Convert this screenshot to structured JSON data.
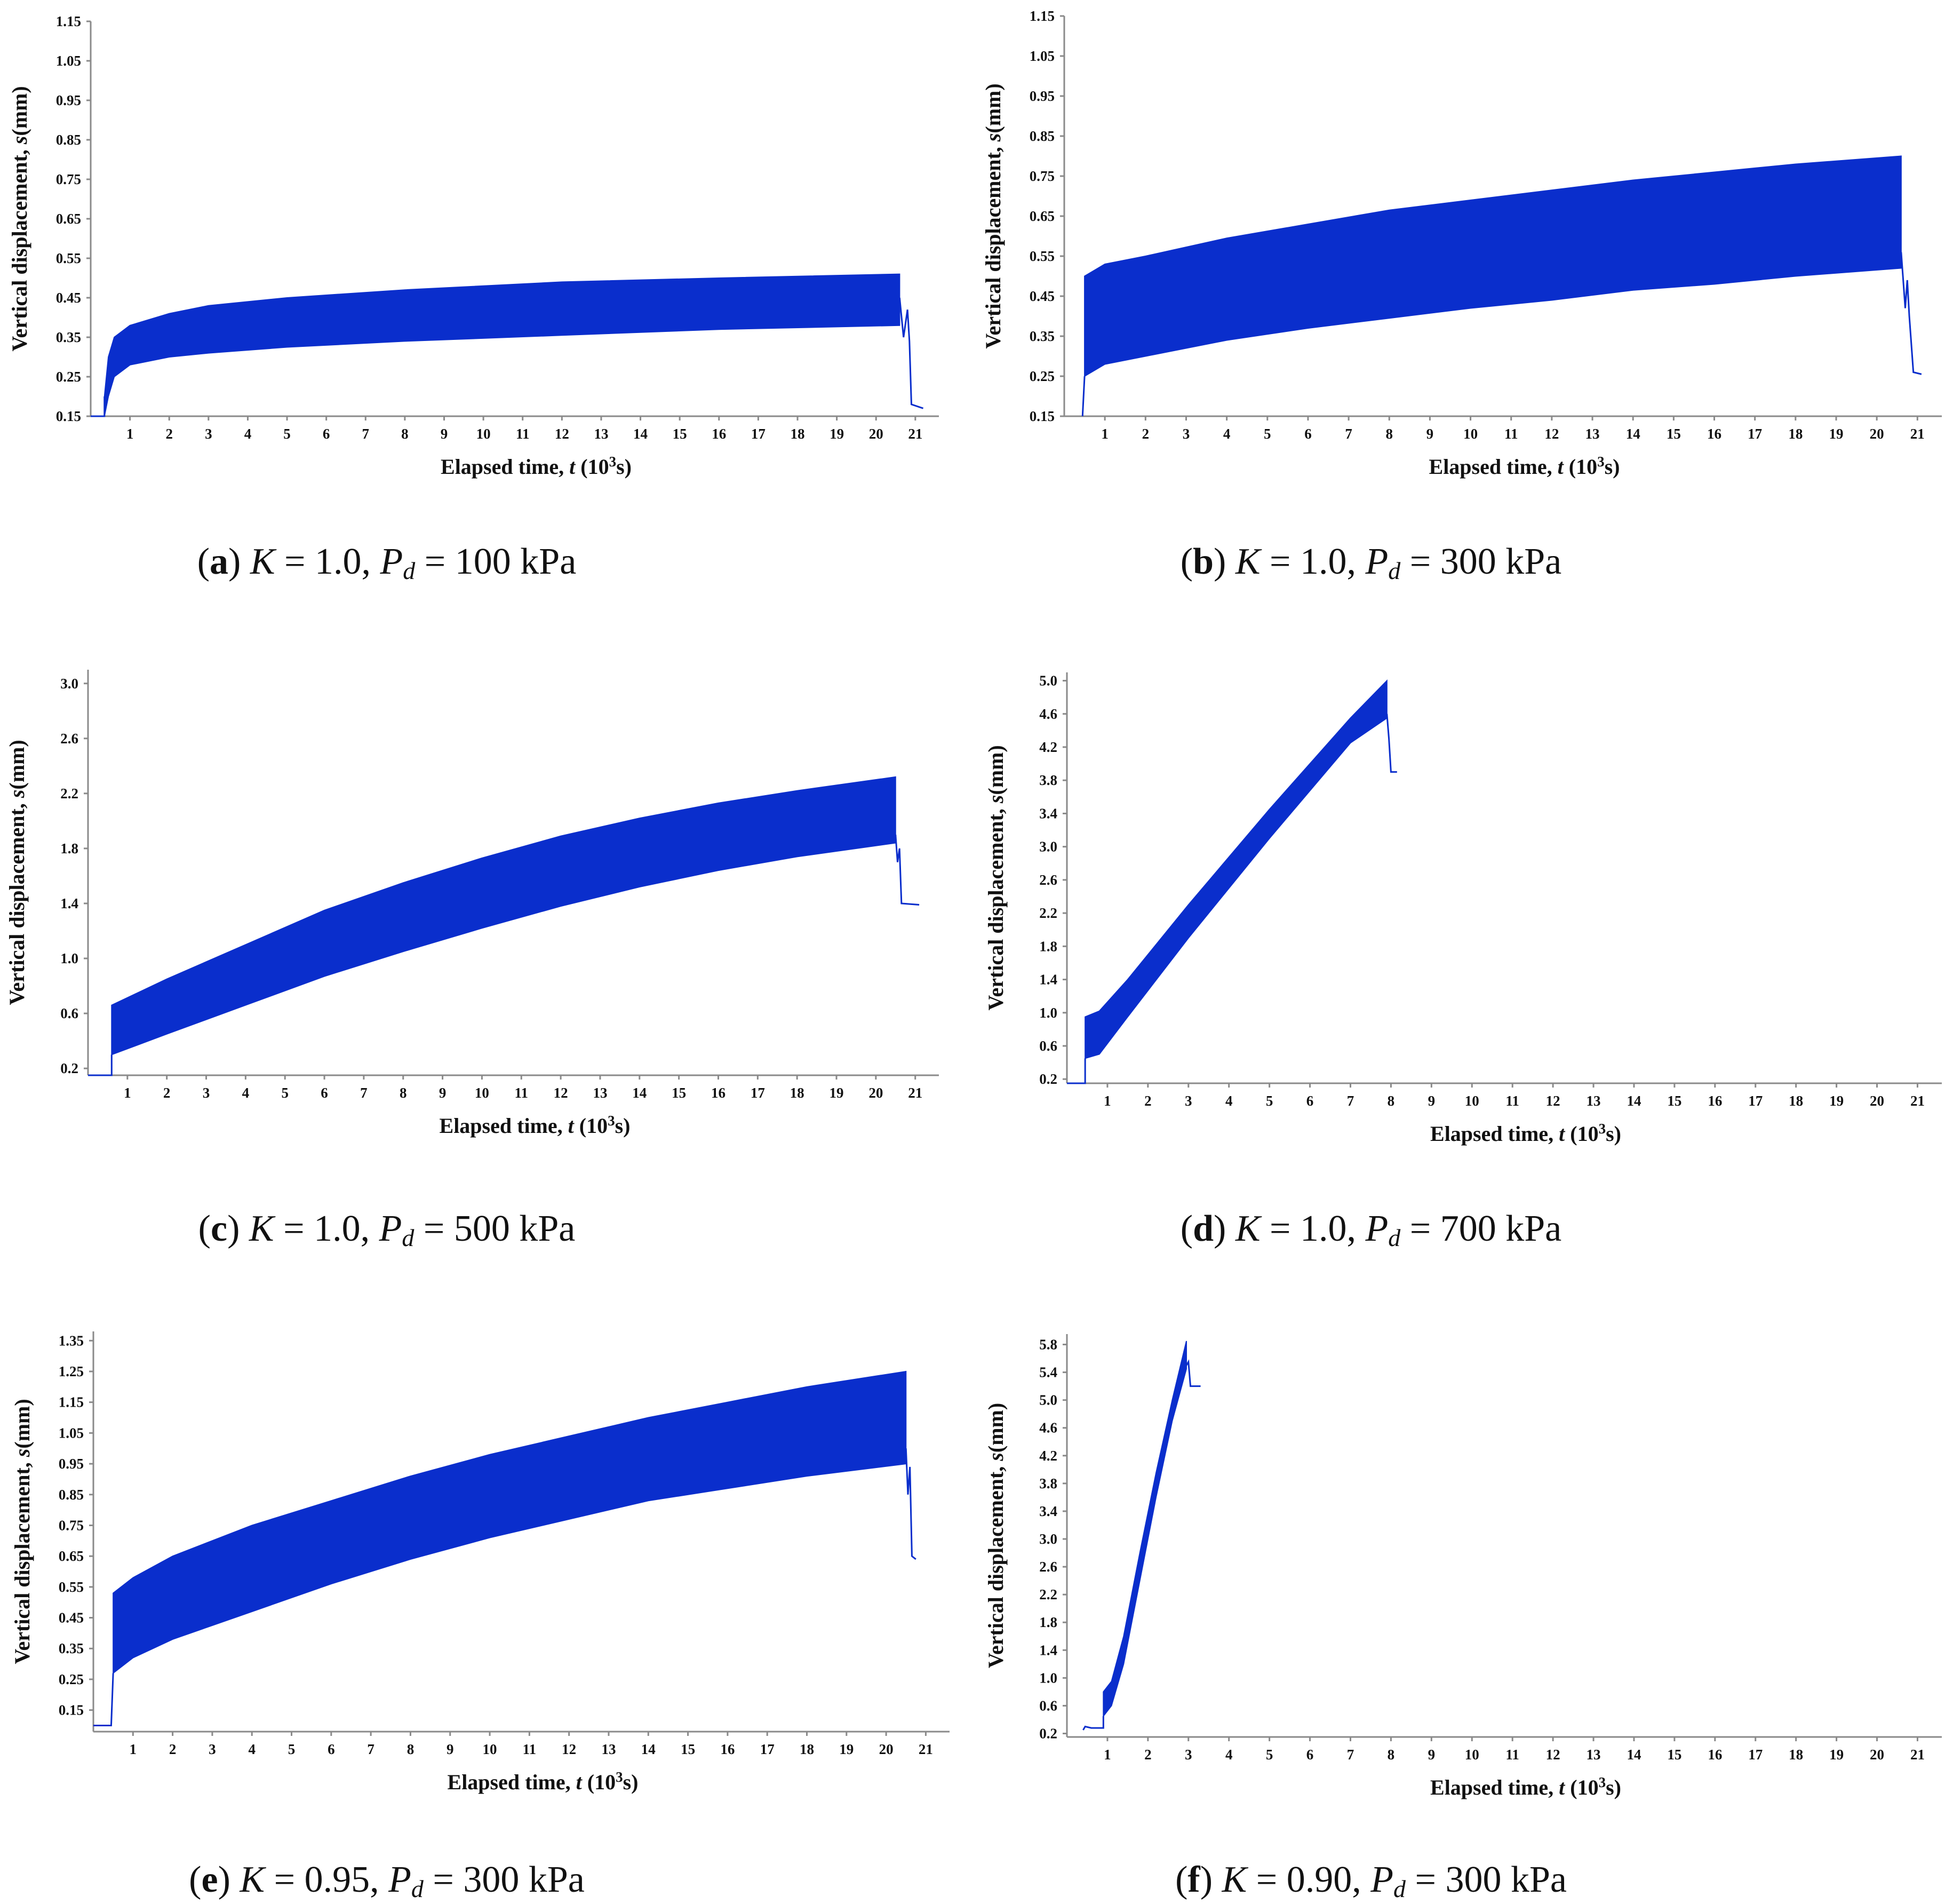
{
  "chart_data": [
    {
      "type": "area",
      "panel": "a",
      "caption_letter": "a",
      "caption_K": "1.0",
      "caption_Pd": "100",
      "xlabel_pre": "Elapsed time, ",
      "xlabel_var": "t",
      "xlabel_post": " (10",
      "xlabel_exp": "3",
      "xlabel_end": "s)",
      "ylabel_pre": "Vertical displacement, ",
      "ylabel_var": "s",
      "ylabel_post": "(mm)",
      "xlim": [
        0,
        21.6
      ],
      "ylim": [
        0.15,
        1.15
      ],
      "xticks": [
        1,
        2,
        3,
        4,
        5,
        6,
        7,
        8,
        9,
        10,
        11,
        12,
        13,
        14,
        15,
        16,
        17,
        18,
        19,
        20,
        21
      ],
      "yticks": [
        "0.15",
        "0.25",
        "0.35",
        "0.45",
        "0.55",
        "0.65",
        "0.75",
        "0.85",
        "0.95",
        "1.05",
        "1.15"
      ],
      "color": "#0a2ecc",
      "band_upper": [
        [
          0.35,
          0.2
        ],
        [
          0.45,
          0.3
        ],
        [
          0.6,
          0.35
        ],
        [
          1,
          0.38
        ],
        [
          2,
          0.41
        ],
        [
          3,
          0.43
        ],
        [
          5,
          0.45
        ],
        [
          8,
          0.47
        ],
        [
          12,
          0.49
        ],
        [
          16,
          0.5
        ],
        [
          20.6,
          0.51
        ]
      ],
      "band_lower": [
        [
          0.35,
          0.15
        ],
        [
          0.45,
          0.2
        ],
        [
          0.6,
          0.25
        ],
        [
          1,
          0.28
        ],
        [
          2,
          0.3
        ],
        [
          3,
          0.31
        ],
        [
          5,
          0.325
        ],
        [
          8,
          0.34
        ],
        [
          12,
          0.355
        ],
        [
          16,
          0.37
        ],
        [
          20.6,
          0.38
        ]
      ],
      "trace_pre": [
        [
          0,
          0.15
        ],
        [
          0.35,
          0.15
        ],
        [
          0.35,
          0.2
        ]
      ],
      "trace_post": [
        [
          20.6,
          0.45
        ],
        [
          20.7,
          0.35
        ],
        [
          20.8,
          0.42
        ],
        [
          20.85,
          0.34
        ],
        [
          20.9,
          0.18
        ],
        [
          21.2,
          0.17
        ]
      ]
    },
    {
      "type": "area",
      "panel": "b",
      "caption_letter": "b",
      "caption_K": "1.0",
      "caption_Pd": "300",
      "xlabel_pre": "Elapsed time, ",
      "xlabel_var": "t",
      "xlabel_post": " (10",
      "xlabel_exp": "3",
      "xlabel_end": "s)",
      "ylabel_pre": "Vertical displacement, ",
      "ylabel_var": "s",
      "ylabel_post": "(mm)",
      "xlim": [
        0,
        21.6
      ],
      "ylim": [
        0.15,
        1.15
      ],
      "xticks": [
        1,
        2,
        3,
        4,
        5,
        6,
        7,
        8,
        9,
        10,
        11,
        12,
        13,
        14,
        15,
        16,
        17,
        18,
        19,
        20,
        21
      ],
      "yticks": [
        "0.15",
        "0.25",
        "0.35",
        "0.45",
        "0.55",
        "0.65",
        "0.75",
        "0.85",
        "0.95",
        "1.05",
        "1.15"
      ],
      "color": "#0a2ecc",
      "band_upper": [
        [
          0.5,
          0.5
        ],
        [
          1,
          0.53
        ],
        [
          2,
          0.55
        ],
        [
          4,
          0.595
        ],
        [
          6,
          0.63
        ],
        [
          8,
          0.665
        ],
        [
          10,
          0.69
        ],
        [
          12,
          0.715
        ],
        [
          14,
          0.74
        ],
        [
          16,
          0.76
        ],
        [
          18,
          0.78
        ],
        [
          20.6,
          0.8
        ]
      ],
      "band_lower": [
        [
          0.5,
          0.25
        ],
        [
          1,
          0.28
        ],
        [
          2,
          0.3
        ],
        [
          4,
          0.34
        ],
        [
          6,
          0.37
        ],
        [
          8,
          0.395
        ],
        [
          10,
          0.42
        ],
        [
          12,
          0.44
        ],
        [
          14,
          0.465
        ],
        [
          16,
          0.48
        ],
        [
          18,
          0.5
        ],
        [
          20.6,
          0.52
        ]
      ],
      "trace_pre": [
        [
          0.45,
          0.15
        ],
        [
          0.5,
          0.25
        ]
      ],
      "trace_post": [
        [
          20.6,
          0.56
        ],
        [
          20.7,
          0.42
        ],
        [
          20.75,
          0.49
        ],
        [
          20.8,
          0.4
        ],
        [
          20.9,
          0.26
        ],
        [
          21.1,
          0.255
        ]
      ]
    },
    {
      "type": "area",
      "panel": "c",
      "caption_letter": "c",
      "caption_K": "1.0",
      "caption_Pd": "500",
      "xlabel_pre": "Elapsed time, ",
      "xlabel_var": "t",
      "xlabel_post": " (10",
      "xlabel_exp": "3",
      "xlabel_end": "s)",
      "ylabel_pre": "Vertical displacement, ",
      "ylabel_var": "s",
      "ylabel_post": "(mm)",
      "xlim": [
        0,
        21.6
      ],
      "ylim": [
        0.15,
        3.1
      ],
      "xticks": [
        1,
        2,
        3,
        4,
        5,
        6,
        7,
        8,
        9,
        10,
        11,
        12,
        13,
        14,
        15,
        16,
        17,
        18,
        19,
        20,
        21
      ],
      "yticks": [
        "0.2",
        "0.6",
        "1.0",
        "1.4",
        "1.8",
        "2.2",
        "2.6",
        "3.0"
      ],
      "color": "#0a2ecc",
      "band_upper": [
        [
          0.6,
          0.66
        ],
        [
          2,
          0.85
        ],
        [
          4,
          1.1
        ],
        [
          6,
          1.35
        ],
        [
          8,
          1.55
        ],
        [
          10,
          1.73
        ],
        [
          12,
          1.89
        ],
        [
          14,
          2.02
        ],
        [
          16,
          2.13
        ],
        [
          18,
          2.22
        ],
        [
          20.5,
          2.32
        ]
      ],
      "band_lower": [
        [
          0.6,
          0.3
        ],
        [
          2,
          0.45
        ],
        [
          4,
          0.66
        ],
        [
          6,
          0.87
        ],
        [
          8,
          1.05
        ],
        [
          10,
          1.22
        ],
        [
          12,
          1.38
        ],
        [
          14,
          1.52
        ],
        [
          16,
          1.64
        ],
        [
          18,
          1.74
        ],
        [
          20.5,
          1.84
        ]
      ],
      "trace_pre": [
        [
          0,
          0.15
        ],
        [
          0.6,
          0.15
        ],
        [
          0.6,
          0.3
        ]
      ],
      "trace_post": [
        [
          20.5,
          1.9
        ],
        [
          20.55,
          1.7
        ],
        [
          20.6,
          1.8
        ],
        [
          20.65,
          1.4
        ],
        [
          21.1,
          1.39
        ]
      ]
    },
    {
      "type": "area",
      "panel": "d",
      "caption_letter": "d",
      "caption_K": "1.0",
      "caption_Pd": "700",
      "xlabel_pre": "Elapsed time, ",
      "xlabel_var": "t",
      "xlabel_post": " (10",
      "xlabel_exp": "3",
      "xlabel_end": "s)",
      "ylabel_pre": "Vertical displacement, ",
      "ylabel_var": "s",
      "ylabel_post": "(mm)",
      "xlim": [
        0,
        21.6
      ],
      "ylim": [
        0.15,
        5.1
      ],
      "xticks": [
        1,
        2,
        3,
        4,
        5,
        6,
        7,
        8,
        9,
        10,
        11,
        12,
        13,
        14,
        15,
        16,
        17,
        18,
        19,
        20,
        21
      ],
      "yticks": [
        "0.2",
        "0.6",
        "1.0",
        "1.4",
        "1.8",
        "2.2",
        "2.6",
        "3.0",
        "3.4",
        "3.8",
        "4.2",
        "4.6",
        "5.0"
      ],
      "color": "#0a2ecc",
      "band_upper": [
        [
          0.45,
          0.95
        ],
        [
          0.8,
          1.02
        ],
        [
          1.5,
          1.4
        ],
        [
          3,
          2.3
        ],
        [
          5,
          3.45
        ],
        [
          7,
          4.55
        ],
        [
          7.9,
          5.0
        ]
      ],
      "band_lower": [
        [
          0.45,
          0.45
        ],
        [
          0.8,
          0.5
        ],
        [
          1.5,
          0.95
        ],
        [
          3,
          1.9
        ],
        [
          5,
          3.1
        ],
        [
          7,
          4.25
        ],
        [
          7.9,
          4.55
        ]
      ],
      "trace_pre": [
        [
          0,
          0.15
        ],
        [
          0.45,
          0.15
        ],
        [
          0.45,
          0.45
        ]
      ],
      "trace_post": [
        [
          7.9,
          4.6
        ],
        [
          7.95,
          4.3
        ],
        [
          8.0,
          3.9
        ],
        [
          8.15,
          3.9
        ]
      ]
    },
    {
      "type": "area",
      "panel": "e",
      "caption_letter": "e",
      "caption_K": "0.95",
      "caption_Pd": "300",
      "xlabel_pre": "Elapsed time, ",
      "xlabel_var": "t",
      "xlabel_post": " (10",
      "xlabel_exp": "3",
      "xlabel_end": "s)",
      "ylabel_pre": "Vertical displacement, ",
      "ylabel_var": "s",
      "ylabel_post": "(mm)",
      "xlim": [
        0,
        21.6
      ],
      "ylim": [
        0.08,
        1.38
      ],
      "xticks": [
        1,
        2,
        3,
        4,
        5,
        6,
        7,
        8,
        9,
        10,
        11,
        12,
        13,
        14,
        15,
        16,
        17,
        18,
        19,
        20,
        21
      ],
      "yticks": [
        "0.15",
        "0.25",
        "0.35",
        "0.45",
        "0.55",
        "0.65",
        "0.75",
        "0.85",
        "0.95",
        "1.05",
        "1.15",
        "1.25",
        "1.35"
      ],
      "color": "#0a2ecc",
      "band_upper": [
        [
          0.5,
          0.53
        ],
        [
          1,
          0.58
        ],
        [
          2,
          0.65
        ],
        [
          4,
          0.75
        ],
        [
          6,
          0.83
        ],
        [
          8,
          0.91
        ],
        [
          10,
          0.98
        ],
        [
          12,
          1.04
        ],
        [
          14,
          1.1
        ],
        [
          16,
          1.15
        ],
        [
          18,
          1.2
        ],
        [
          20.5,
          1.25
        ]
      ],
      "band_lower": [
        [
          0.5,
          0.27
        ],
        [
          1,
          0.32
        ],
        [
          2,
          0.38
        ],
        [
          4,
          0.47
        ],
        [
          6,
          0.56
        ],
        [
          8,
          0.64
        ],
        [
          10,
          0.71
        ],
        [
          12,
          0.77
        ],
        [
          14,
          0.83
        ],
        [
          16,
          0.87
        ],
        [
          18,
          0.91
        ],
        [
          20.5,
          0.95
        ]
      ],
      "trace_pre": [
        [
          0,
          0.1
        ],
        [
          0.45,
          0.1
        ],
        [
          0.5,
          0.27
        ]
      ],
      "trace_post": [
        [
          20.5,
          1.0
        ],
        [
          20.55,
          0.85
        ],
        [
          20.6,
          0.94
        ],
        [
          20.65,
          0.65
        ],
        [
          20.75,
          0.64
        ]
      ]
    },
    {
      "type": "area",
      "panel": "f",
      "caption_letter": "f",
      "caption_K": "0.90",
      "caption_Pd": "300",
      "xlabel_pre": "Elapsed time, ",
      "xlabel_var": "t",
      "xlabel_post": " (10",
      "xlabel_exp": "3",
      "xlabel_end": "s)",
      "ylabel_pre": "Vertical displacement, ",
      "ylabel_var": "s",
      "ylabel_post": "(mm)",
      "xlim": [
        0,
        21.6
      ],
      "ylim": [
        0.15,
        5.95
      ],
      "xticks": [
        1,
        2,
        3,
        4,
        5,
        6,
        7,
        8,
        9,
        10,
        11,
        12,
        13,
        14,
        15,
        16,
        17,
        18,
        19,
        20,
        21
      ],
      "yticks": [
        "0.2",
        "0.6",
        "1.0",
        "1.4",
        "1.8",
        "2.2",
        "2.6",
        "3.0",
        "3.4",
        "3.8",
        "4.2",
        "4.6",
        "5.0",
        "5.4",
        "5.8"
      ],
      "color": "#0a2ecc",
      "band_upper": [
        [
          0.9,
          0.8
        ],
        [
          1.1,
          0.95
        ],
        [
          1.4,
          1.6
        ],
        [
          1.8,
          2.8
        ],
        [
          2.2,
          3.95
        ],
        [
          2.6,
          5.0
        ],
        [
          2.95,
          5.85
        ]
      ],
      "band_lower": [
        [
          0.9,
          0.45
        ],
        [
          1.1,
          0.6
        ],
        [
          1.4,
          1.2
        ],
        [
          1.8,
          2.4
        ],
        [
          2.2,
          3.6
        ],
        [
          2.6,
          4.7
        ],
        [
          2.95,
          5.45
        ]
      ],
      "trace_pre": [
        [
          0.4,
          0.25
        ],
        [
          0.45,
          0.3
        ],
        [
          0.6,
          0.28
        ],
        [
          0.9,
          0.28
        ],
        [
          0.9,
          0.45
        ]
      ],
      "trace_post": [
        [
          2.95,
          5.5
        ],
        [
          3.0,
          5.55
        ],
        [
          3.05,
          5.2
        ],
        [
          3.3,
          5.2
        ]
      ]
    }
  ]
}
